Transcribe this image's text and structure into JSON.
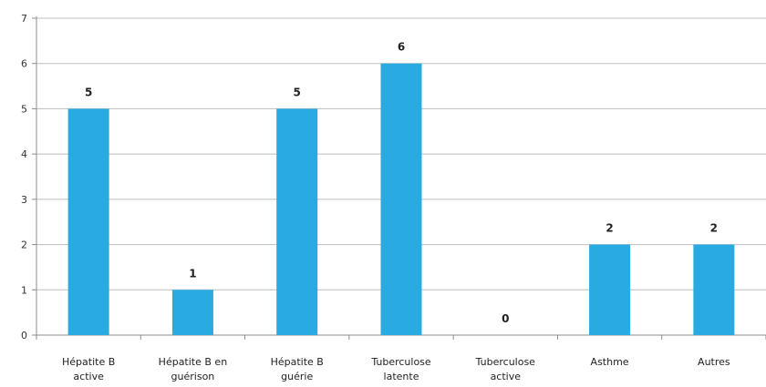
{
  "chart_data": {
    "type": "bar",
    "title": "",
    "xlabel": "",
    "ylabel": "",
    "categories": [
      [
        "Hépatite B",
        "active"
      ],
      [
        "Hépatite B en",
        "guérison"
      ],
      [
        "Hépatite B",
        "guérie"
      ],
      [
        "Tuberculose",
        "latente"
      ],
      [
        "Tuberculose",
        "active"
      ],
      [
        "Asthme"
      ],
      [
        "Autres"
      ]
    ],
    "values": [
      5,
      1,
      5,
      6,
      0,
      2,
      2
    ],
    "ylim": [
      0,
      7
    ],
    "yticks": [
      0,
      1,
      2,
      3,
      4,
      5,
      6,
      7
    ],
    "grid": true,
    "legend": "none",
    "colors": {
      "bar": "#29ABE2",
      "grid": "#BDBDBD",
      "axis": "#8C8C8C"
    }
  }
}
